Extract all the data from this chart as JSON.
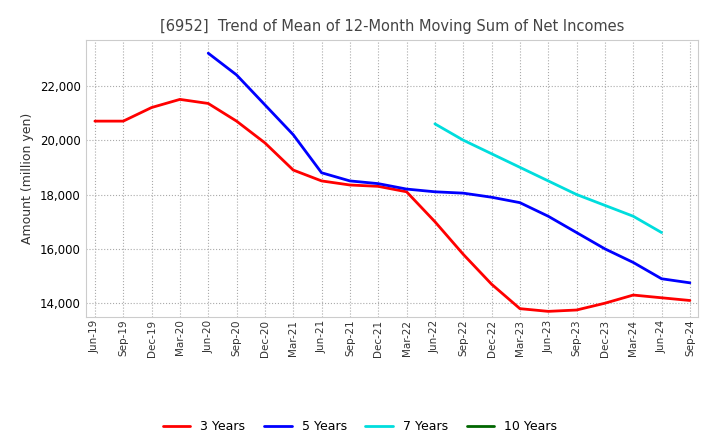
{
  "title": "[6952]  Trend of Mean of 12-Month Moving Sum of Net Incomes",
  "ylabel": "Amount (million yen)",
  "background_color": "#ffffff",
  "grid_color": "#aaaaaa",
  "ylim": [
    13500,
    23700
  ],
  "yticks": [
    14000,
    16000,
    18000,
    20000,
    22000
  ],
  "legend": [
    "3 Years",
    "5 Years",
    "7 Years",
    "10 Years"
  ],
  "line_colors": [
    "#ff0000",
    "#0000ff",
    "#00dddd",
    "#006600"
  ],
  "x_labels": [
    "Jun-19",
    "Sep-19",
    "Dec-19",
    "Mar-20",
    "Jun-20",
    "Sep-20",
    "Dec-20",
    "Mar-21",
    "Jun-21",
    "Sep-21",
    "Dec-21",
    "Mar-22",
    "Jun-22",
    "Sep-22",
    "Dec-22",
    "Mar-23",
    "Jun-23",
    "Sep-23",
    "Dec-23",
    "Mar-24",
    "Jun-24",
    "Sep-24"
  ],
  "series_3yr": [
    20700,
    20700,
    21200,
    21500,
    21350,
    20700,
    19900,
    18900,
    18500,
    18350,
    18300,
    18100,
    17000,
    15800,
    14700,
    13800,
    13700,
    13750,
    14000,
    14300,
    14200,
    14100
  ],
  "series_5yr": [
    null,
    null,
    null,
    null,
    23200,
    22400,
    21300,
    20200,
    18800,
    18500,
    18400,
    18200,
    18100,
    18050,
    17900,
    17700,
    17200,
    16600,
    16000,
    15500,
    14900,
    14750
  ],
  "series_7yr": [
    null,
    null,
    null,
    null,
    null,
    null,
    null,
    null,
    null,
    null,
    null,
    null,
    20600,
    20000,
    19500,
    19000,
    18500,
    18000,
    17600,
    17200,
    16600,
    null
  ],
  "series_10yr": [
    null,
    null,
    null,
    null,
    null,
    null,
    null,
    null,
    null,
    null,
    null,
    null,
    null,
    null,
    null,
    null,
    null,
    null,
    null,
    null,
    null,
    null
  ]
}
